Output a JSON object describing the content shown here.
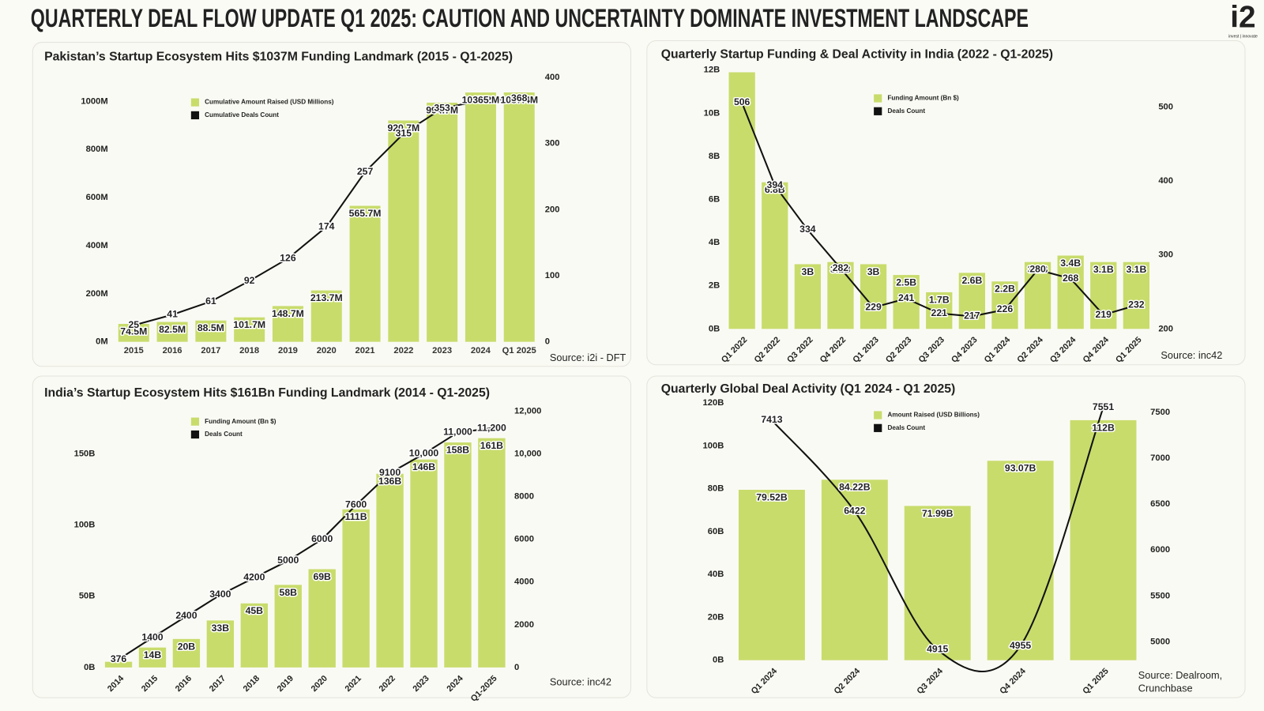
{
  "page_title": "QUARTERLY DEAL FLOW UPDATE Q1 2025: CAUTION AND UNCERTAINTY DOMINATE INVESTMENT LANDSCAPE",
  "logo": {
    "mark": "i2",
    "tagline": "invest | innovate"
  },
  "chart_data": [
    {
      "type": "combo",
      "title": "Pakistan’s Startup Ecosystem Hits $1037M Funding Landmark (2015 - Q1-2025)",
      "source": "Source: i2i - DFT",
      "categories": [
        "2015",
        "2016",
        "2017",
        "2018",
        "2019",
        "2020",
        "2021",
        "2022",
        "2023",
        "2024",
        "Q1 2025"
      ],
      "series": [
        {
          "name": "Cumulative Amount Raised (USD Millions)",
          "type": "bar",
          "color": "#c8dc6c",
          "values": [
            74.5,
            82.5,
            88.5,
            101.7,
            148.7,
            213.7,
            565.7,
            920.7,
            994.7,
            1037.2,
            1037.4
          ],
          "value_labels": [
            "74.5M",
            "82.5M",
            "88.5M",
            "101.7M",
            "148.7M",
            "213.7M",
            "565.7M",
            "920.7M",
            "994.7M",
            "1037.2M",
            "1037.4M"
          ]
        },
        {
          "name": "Cumulative Deals Count",
          "type": "line",
          "axis": "y2",
          "color": "#111111",
          "values": [
            25,
            41,
            61,
            92,
            126,
            174,
            257,
            315,
            353,
            365,
            368
          ]
        }
      ],
      "ylim": [
        0,
        1100
      ],
      "yticks": [
        {
          "value": 0,
          "label": "0M"
        },
        {
          "value": 200,
          "label": "200M"
        },
        {
          "value": 400,
          "label": "400M"
        },
        {
          "value": 600,
          "label": "600M"
        },
        {
          "value": 800,
          "label": "800M"
        },
        {
          "value": 1000,
          "label": "1000M"
        }
      ],
      "y2lim": [
        0,
        400
      ],
      "y2ticks": [
        0,
        100,
        200,
        300,
        400
      ],
      "grid": false
    },
    {
      "type": "combo",
      "title": "Quarterly Startup Funding & Deal Activity in India (2022 - Q1-2025)",
      "source": "Source: inc42",
      "categories": [
        "Q1 2022",
        "Q2 2022",
        "Q3 2022",
        "Q4 2022",
        "Q1 2023",
        "Q2 2023",
        "Q3 2023",
        "Q4 2023",
        "Q1 2024",
        "Q2 2024",
        "Q3 2024",
        "Q4 2024",
        "Q1 2025"
      ],
      "series": [
        {
          "name": "Funding Amount (Bn $)",
          "type": "bar",
          "color": "#c8dc6c",
          "values": [
            11.9,
            6.8,
            3,
            3.1,
            3,
            2.5,
            1.7,
            2.6,
            2.2,
            3.1,
            3.4,
            3.1,
            3.1
          ],
          "value_labels": [
            null,
            "6.8B",
            "3B",
            "3.1B",
            "3B",
            "2.5B",
            "1.7B",
            "2.6B",
            "2.2B",
            "3.1B",
            "3.4B",
            "3.1B",
            "3.1B"
          ]
        },
        {
          "name": "Deals Count",
          "type": "line",
          "axis": "y2",
          "color": "#111111",
          "values": [
            506,
            394,
            334,
            282,
            229,
            241,
            221,
            217,
            226,
            280,
            268,
            219,
            232
          ]
        }
      ],
      "ylim": [
        0,
        12
      ],
      "yticks": [
        {
          "value": 0,
          "label": "0B"
        },
        {
          "value": 2,
          "label": "2B"
        },
        {
          "value": 4,
          "label": "4B"
        },
        {
          "value": 6,
          "label": "6B"
        },
        {
          "value": 8,
          "label": "8B"
        },
        {
          "value": 10,
          "label": "10B"
        },
        {
          "value": 12,
          "label": "12B"
        }
      ],
      "y2lim": [
        200,
        550
      ],
      "y2ticks": [
        200,
        300,
        400,
        500
      ],
      "grid": false
    },
    {
      "type": "combo",
      "title": "India’s Startup Ecosystem Hits $161Bn Funding Landmark (2014 - Q1-2025)",
      "source": "Source: inc42",
      "categories": [
        "2014",
        "2015",
        "2016",
        "2017",
        "2018",
        "2019",
        "2020",
        "2021",
        "2022",
        "2023",
        "2024",
        "Q1-2025"
      ],
      "series": [
        {
          "name": "Funding Amount (Bn $)",
          "type": "bar",
          "color": "#c8dc6c",
          "values": [
            4,
            14,
            20,
            33,
            45,
            58,
            69,
            111,
            136,
            146,
            158,
            161
          ],
          "value_labels": [
            null,
            "14B",
            "20B",
            "33B",
            "45B",
            "58B",
            "69B",
            "111B",
            "136B",
            "146B",
            "158B",
            "161B"
          ]
        },
        {
          "name": "Deals Count",
          "type": "line",
          "axis": "y2",
          "color": "#111111",
          "values": [
            376,
            1400,
            2400,
            3400,
            4200,
            5000,
            6000,
            7600,
            9100,
            10000,
            11000,
            11200
          ],
          "value_labels": [
            "376",
            "1400",
            "2400",
            "3400",
            "4200",
            "5000",
            "6000",
            "7600",
            "9100",
            "10,000",
            "11,000",
            "11,200"
          ]
        }
      ],
      "ylim": [
        0,
        180
      ],
      "yticks": [
        {
          "value": 0,
          "label": "0B"
        },
        {
          "value": 50,
          "label": "50B"
        },
        {
          "value": 100,
          "label": "100B"
        },
        {
          "value": 150,
          "label": "150B"
        }
      ],
      "y2lim": [
        0,
        12000
      ],
      "y2ticks": [
        0,
        2000,
        4000,
        6000,
        8000,
        {
          "value": 10000,
          "label": "10,000"
        },
        {
          "value": 12000,
          "label": "12,000"
        }
      ],
      "grid": false
    },
    {
      "type": "combo",
      "title": "Quarterly Global Deal Activity (Q1 2024 - Q1 2025)",
      "source": "Source: Dealroom, Crunchbase",
      "categories": [
        "Q1 2024",
        "Q2 2024",
        "Q3 2024",
        "Q4 2024",
        "Q1 2025"
      ],
      "series": [
        {
          "name": "Amount Raised (USD Billions)",
          "type": "bar",
          "color": "#c8dc6c",
          "values": [
            79.52,
            84.22,
            71.99,
            93.07,
            112
          ],
          "value_labels": [
            "79.52B",
            "84.22B",
            "71.99B",
            "93.07B",
            "112B"
          ]
        },
        {
          "name": "Deals Count",
          "type": "line",
          "axis": "y2",
          "color": "#111111",
          "values": [
            7413,
            6422,
            4915,
            4955,
            7551
          ]
        }
      ],
      "ylim": [
        0,
        120
      ],
      "yticks": [
        {
          "value": 0,
          "label": "0B"
        },
        {
          "value": 20,
          "label": "20B"
        },
        {
          "value": 40,
          "label": "40B"
        },
        {
          "value": 60,
          "label": "60B"
        },
        {
          "value": 80,
          "label": "80B"
        },
        {
          "value": 100,
          "label": "100B"
        },
        {
          "value": 120,
          "label": "120B"
        }
      ],
      "y2lim": [
        4800,
        7600
      ],
      "y2ticks": [
        5000,
        5500,
        6000,
        6500,
        7000,
        7500
      ],
      "smooth": true,
      "grid": false
    }
  ]
}
